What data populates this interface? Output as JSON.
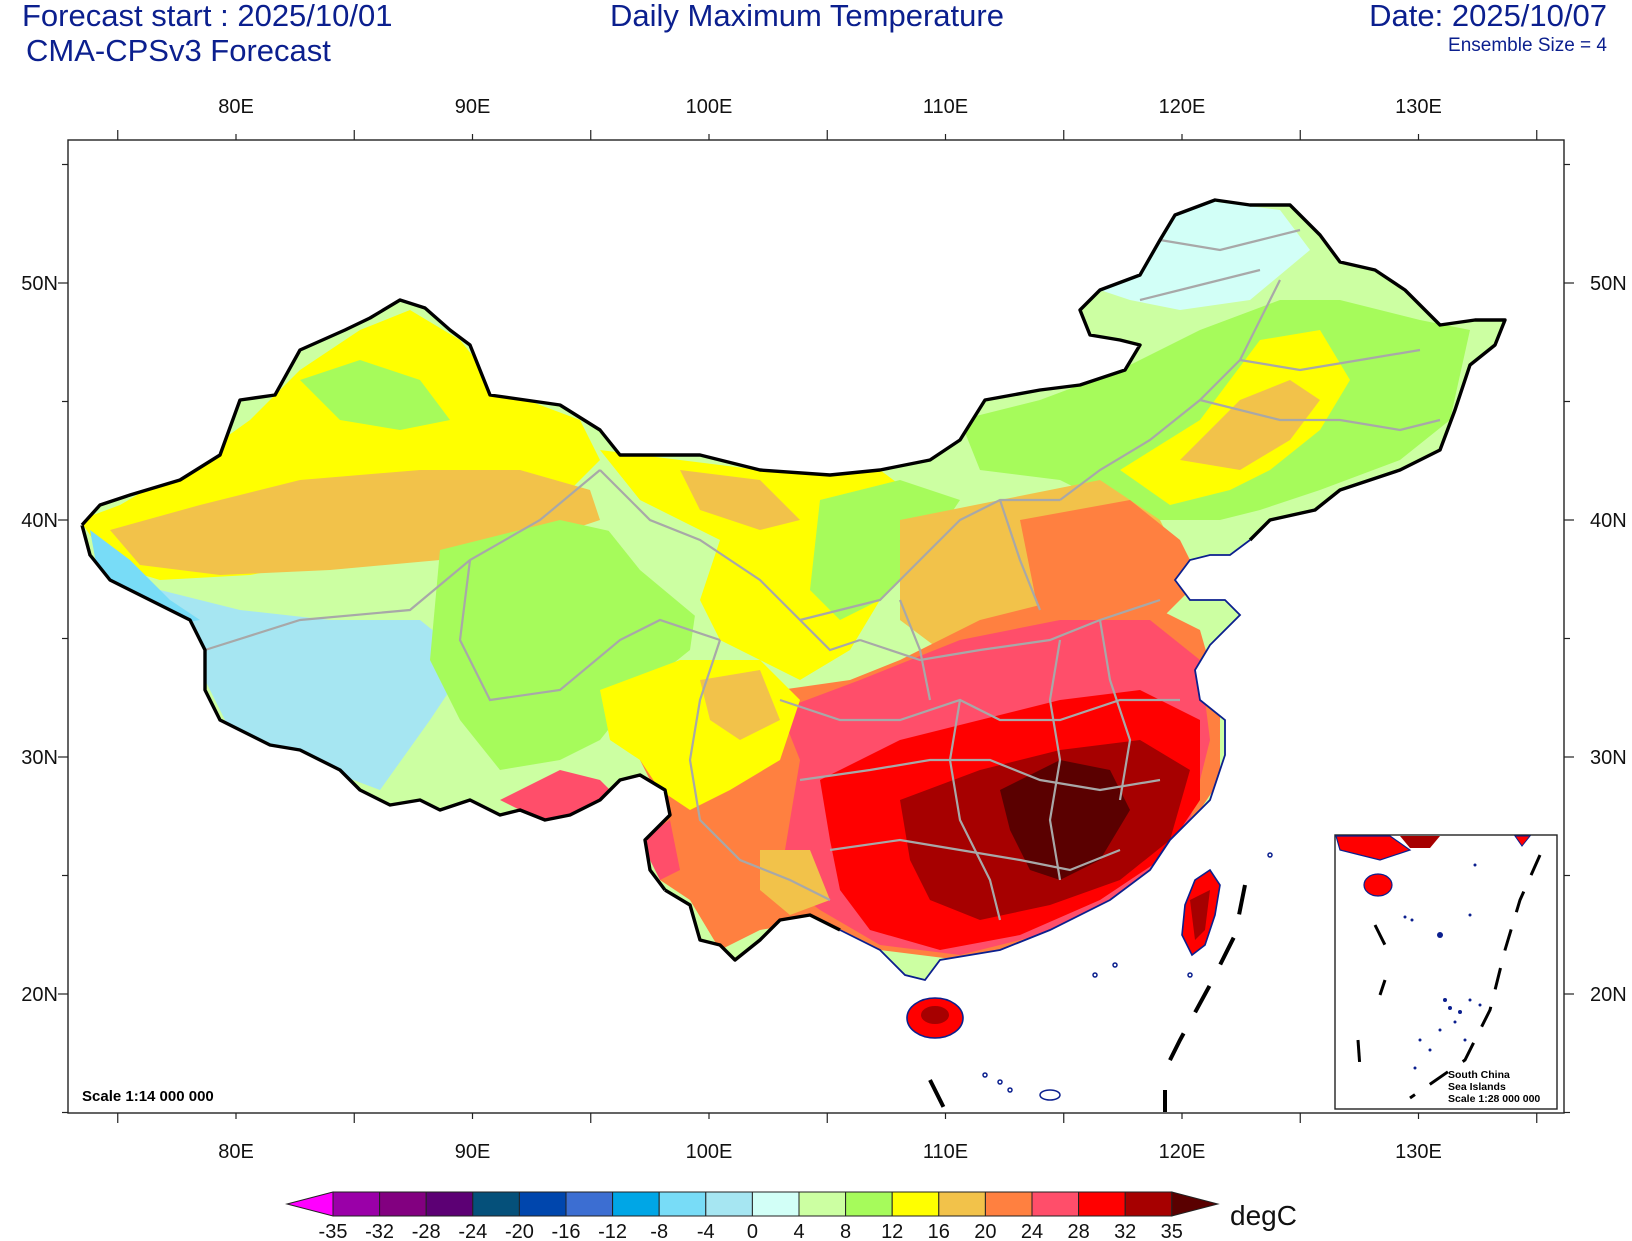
{
  "header": {
    "forecast_start": "Forecast start : 2025/10/01",
    "model": "CMA-CPSv3 Forecast",
    "title": "Daily Maximum Temperature",
    "date": "Date: 2025/10/07",
    "ensemble": "Ensemble Size = 4"
  },
  "axes": {
    "lon_labels": [
      "80E",
      "90E",
      "100E",
      "110E",
      "120E",
      "130E"
    ],
    "lat_labels": [
      "50N",
      "40N",
      "30N",
      "20N"
    ]
  },
  "map": {
    "scale_label": "Scale 1:14 000 000",
    "inset_label_lines": [
      "South China",
      "Sea Islands",
      "Scale 1:28 000 000"
    ]
  },
  "colorbar": {
    "unit": "degC",
    "levels": [
      "-35",
      "-32",
      "-28",
      "-24",
      "-20",
      "-16",
      "-12",
      "-8",
      "-4",
      "0",
      "4",
      "8",
      "12",
      "16",
      "20",
      "24",
      "28",
      "32",
      "35"
    ],
    "colors": [
      "#9a00a8",
      "#820080",
      "#5c0074",
      "#05507a",
      "#0046ad",
      "#3c6ed2",
      "#00a6e6",
      "#78dcf7",
      "#a6e6f2",
      "#d2fff7",
      "#ccffa2",
      "#a6fb5b",
      "#ffff00",
      "#f2c24a",
      "#ff8040",
      "#ff4e6a",
      "#ff0000",
      "#a60000"
    ],
    "low_end_color": "#ff00ff",
    "high_end_color": "#5a0000"
  }
}
